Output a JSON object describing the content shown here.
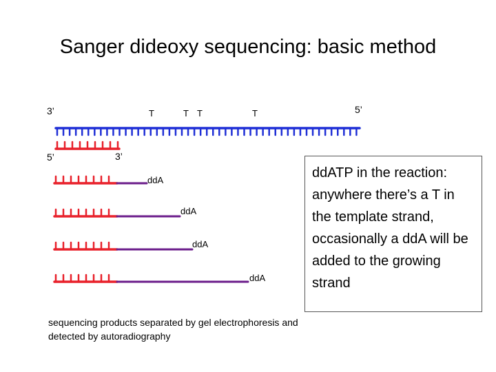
{
  "title": "Sanger dideoxy sequencing: basic method",
  "template": {
    "left_end": "3’",
    "right_end": "5’",
    "bases": [
      "T",
      "T",
      "T",
      "T"
    ]
  },
  "primer": {
    "left_end": "5’",
    "right_end": "3’"
  },
  "products": [
    {
      "label": "ddA"
    },
    {
      "label": "ddA"
    },
    {
      "label": "ddA"
    },
    {
      "label": "ddA"
    }
  ],
  "note": "ddATP in the reaction: anywhere there’s a T in the template strand, occasionally a ddA will be added to the growing strand",
  "caption": "sequencing products separated by gel electrophoresis and detected by autoradiography",
  "colors": {
    "template": "#1f2fd6",
    "primer": "#e8202a",
    "extension": "#6a1b8a"
  }
}
